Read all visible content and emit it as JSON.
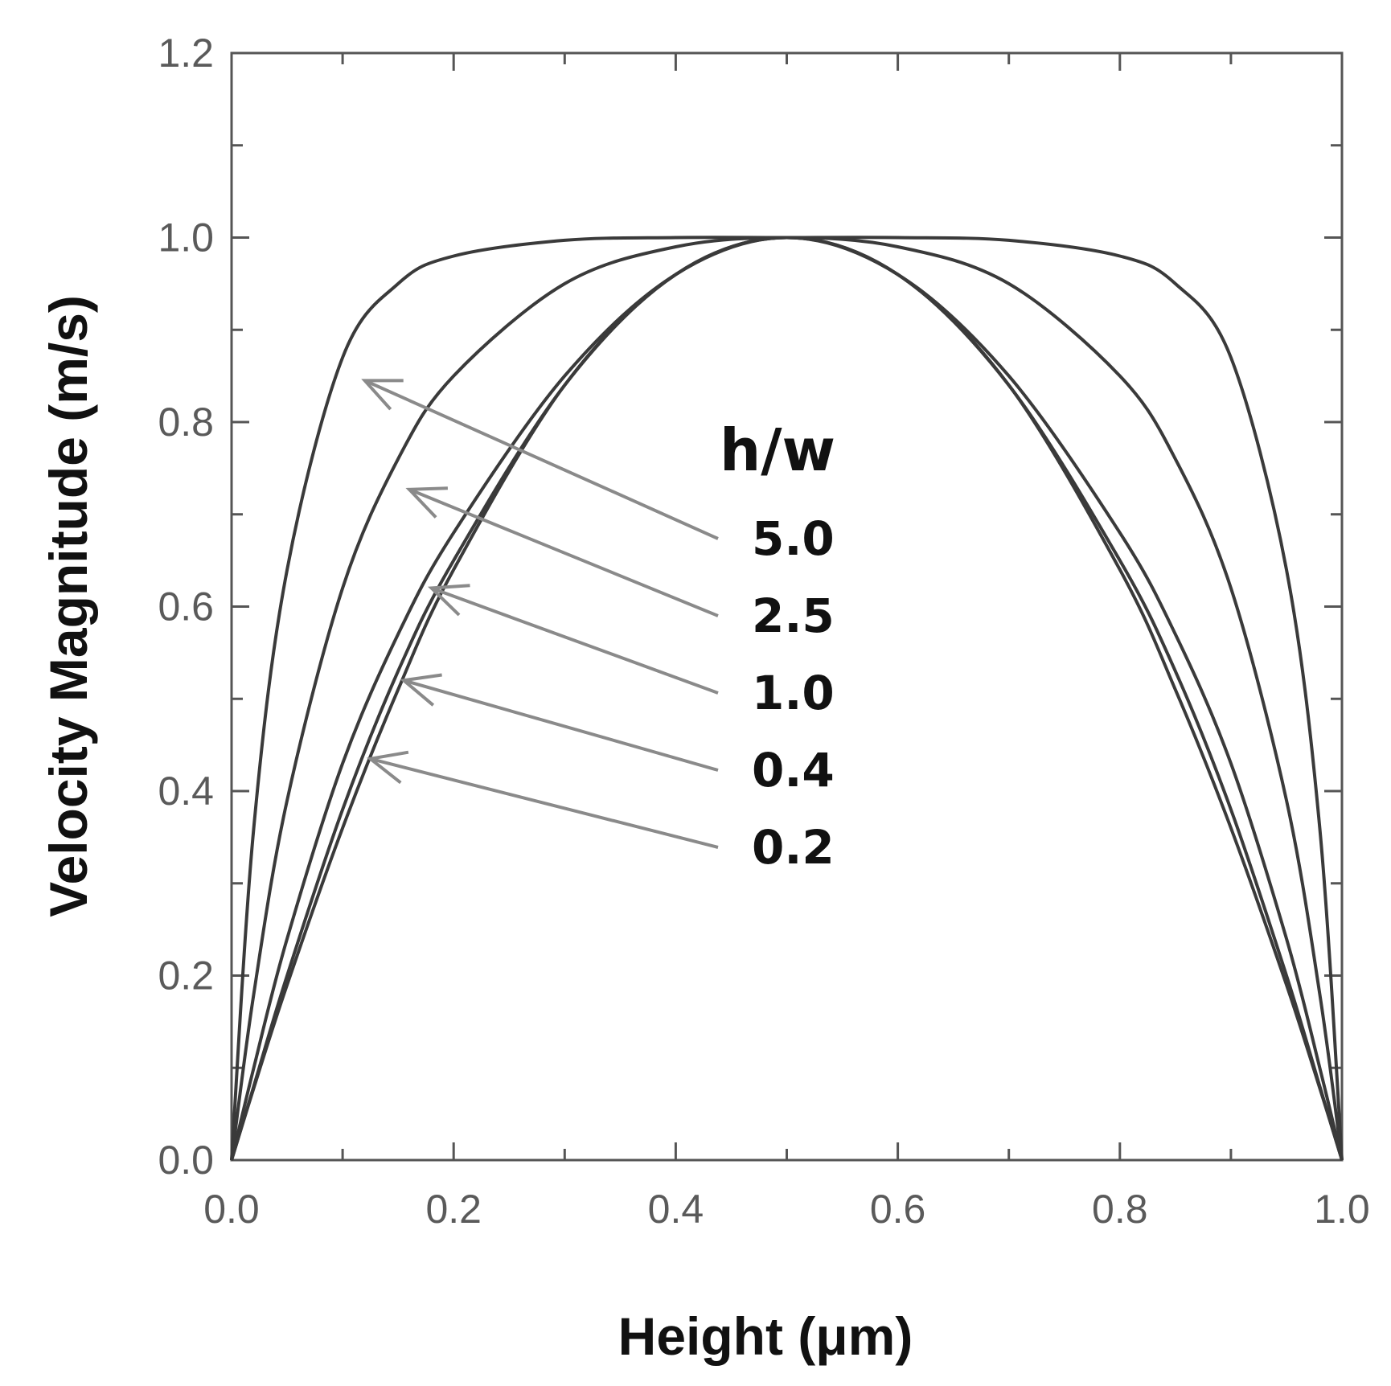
{
  "chart_data": {
    "type": "line",
    "xlabel": "Height (μm)",
    "ylabel": "Velocity Magnitude (m/s)",
    "xlim": [
      0,
      1
    ],
    "ylim": [
      0,
      1.2
    ],
    "x_ticks": [
      "0.0",
      "0.2",
      "0.4",
      "0.6",
      "0.8",
      "1.0"
    ],
    "y_ticks": [
      "0.0",
      "0.2",
      "0.4",
      "0.6",
      "0.8",
      "1.0",
      "1.2"
    ],
    "grid": false,
    "legend_title": "h/w",
    "legend_placement": "center-right, with arrows pointing to curves",
    "line_color": "#3a3a3a",
    "arrow_color": "#8a8a8a",
    "series": [
      {
        "name": "5.0",
        "x": [
          0,
          0.02,
          0.05,
          0.1,
          0.15,
          0.2,
          0.3,
          0.4,
          0.5,
          0.6,
          0.7,
          0.8,
          0.85,
          0.9,
          0.95,
          0.98,
          1.0
        ],
        "y": [
          0,
          0.36,
          0.64,
          0.87,
          0.95,
          0.98,
          0.997,
          1.0,
          1.0,
          1.0,
          0.997,
          0.98,
          0.95,
          0.87,
          0.64,
          0.36,
          0
        ],
        "arrow_x": 0.12,
        "arrow_y": 0.845
      },
      {
        "name": "2.5",
        "x": [
          0,
          0.02,
          0.05,
          0.1,
          0.15,
          0.2,
          0.3,
          0.4,
          0.5,
          0.6,
          0.7,
          0.8,
          0.85,
          0.9,
          0.95,
          0.98,
          1.0
        ],
        "y": [
          0,
          0.18,
          0.39,
          0.62,
          0.76,
          0.85,
          0.95,
          0.99,
          1.0,
          0.99,
          0.95,
          0.85,
          0.76,
          0.62,
          0.39,
          0.18,
          0
        ],
        "arrow_x": 0.16,
        "arrow_y": 0.727
      },
      {
        "name": "1.0",
        "x": [
          0,
          0.02,
          0.05,
          0.1,
          0.15,
          0.2,
          0.3,
          0.4,
          0.5,
          0.6,
          0.7,
          0.8,
          0.85,
          0.9,
          0.95,
          0.98,
          1.0
        ],
        "y": [
          0,
          0.1,
          0.24,
          0.43,
          0.57,
          0.68,
          0.85,
          0.96,
          1.0,
          0.96,
          0.85,
          0.68,
          0.57,
          0.43,
          0.24,
          0.1,
          0
        ],
        "arrow_x": 0.18,
        "arrow_y": 0.62
      },
      {
        "name": "0.4",
        "x": [
          0,
          0.02,
          0.05,
          0.1,
          0.15,
          0.2,
          0.3,
          0.4,
          0.5,
          0.6,
          0.7,
          0.8,
          0.85,
          0.9,
          0.95,
          0.98,
          1.0
        ],
        "y": [
          0,
          0.08,
          0.2,
          0.38,
          0.53,
          0.65,
          0.84,
          0.96,
          1.0,
          0.96,
          0.84,
          0.65,
          0.53,
          0.38,
          0.2,
          0.08,
          0
        ],
        "arrow_x": 0.155,
        "arrow_y": 0.52
      },
      {
        "name": "0.2",
        "x": [
          0,
          0.02,
          0.05,
          0.1,
          0.15,
          0.2,
          0.3,
          0.4,
          0.5,
          0.6,
          0.7,
          0.8,
          0.85,
          0.9,
          0.95,
          0.98,
          1.0
        ],
        "y": [
          0,
          0.078,
          0.19,
          0.36,
          0.51,
          0.64,
          0.84,
          0.96,
          1.0,
          0.96,
          0.84,
          0.64,
          0.51,
          0.36,
          0.19,
          0.078,
          0
        ],
        "arrow_x": 0.125,
        "arrow_y": 0.435
      }
    ]
  }
}
